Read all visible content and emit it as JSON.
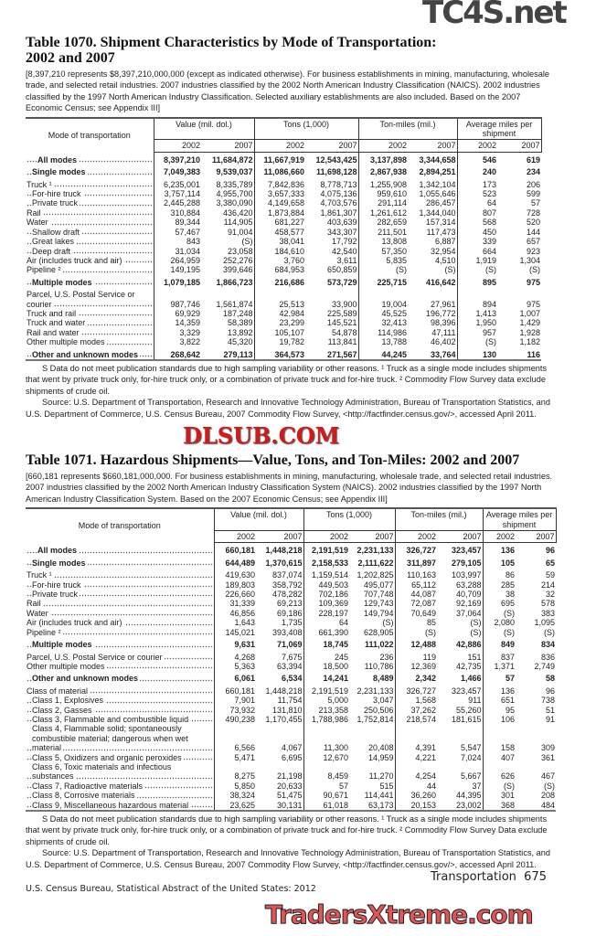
{
  "watermarks": {
    "top": "TC4S.net",
    "middle": "DLSUB.COM",
    "bottom": "TradersXtreme.com"
  },
  "t1": {
    "title": "Table 1070. Shipment Characteristics by Mode of Transportation: 2002 and 2007",
    "headnote": "[8,397,210 represents $8,397,210,000,000 (except as indicated otherwise). For business establishments in mining, manufacturing, wholesale trade, and selected retail industries. 2007 industries classified by the 2002 North American Industry Classification (NAICS). 2002 industries classified by the 1997 North American Industry Classification. Selected auxiliary establishments are also included. Based on the 2007 Economic Census; see Appendix III]",
    "stub": "Mode of transportation",
    "groups": [
      "Value (mil. dol.)",
      "Tons (1,000)",
      "Ton-miles (mil.)",
      "Average miles per shipment"
    ],
    "years": [
      "2002",
      "2007",
      "2002",
      "2007",
      "2002",
      "2007",
      "2002",
      "2007"
    ],
    "rows": [
      {
        "label": "All modes",
        "b": true,
        "ind": 2,
        "gap": true,
        "v": [
          "8,397,210",
          "11,684,872",
          "11,667,919",
          "12,543,425",
          "3,137,898",
          "3,344,658",
          "546",
          "619"
        ]
      },
      {
        "label": "Single modes",
        "b": true,
        "ind": 1,
        "gap": true,
        "v": [
          "7,049,383",
          "9,539,037",
          "11,086,660",
          "11,698,128",
          "2,867,938",
          "2,894,251",
          "240",
          "234"
        ]
      },
      {
        "label": "Truck ¹",
        "ind": 0,
        "gap": true,
        "v": [
          "6,235,001",
          "8,335,789",
          "7,842,836",
          "8,778,713",
          "1,255,908",
          "1,342,104",
          "173",
          "206"
        ]
      },
      {
        "label": "For-hire truck",
        "ind": 1,
        "v": [
          "3,757,114",
          "4,955,700",
          "3,657,333",
          "4,075,136",
          "959,610",
          "1,055,646",
          "523",
          "599"
        ]
      },
      {
        "label": "Private truck",
        "ind": 1,
        "v": [
          "2,445,288",
          "3,380,090",
          "4,149,658",
          "4,703,576",
          "291,114",
          "286,457",
          "64",
          "57"
        ]
      },
      {
        "label": "Rail",
        "ind": 0,
        "v": [
          "310,884",
          "436,420",
          "1,873,884",
          "1,861,307",
          "1,261,612",
          "1,344,040",
          "807",
          "728"
        ]
      },
      {
        "label": "Water",
        "ind": 0,
        "v": [
          "89,344",
          "114,905",
          "681,227",
          "403,639",
          "282,659",
          "157,314",
          "568",
          "520"
        ]
      },
      {
        "label": "Shallow draft",
        "ind": 1,
        "v": [
          "57,467",
          "91,004",
          "458,577",
          "343,307",
          "211,501",
          "117,473",
          "450",
          "144"
        ]
      },
      {
        "label": "Great lakes",
        "ind": 1,
        "v": [
          "843",
          "(S)",
          "38,041",
          "17,792",
          "13,808",
          "6,887",
          "339",
          "657"
        ]
      },
      {
        "label": "Deep draft",
        "ind": 1,
        "v": [
          "31,034",
          "23,058",
          "184,610",
          "42,540",
          "57,350",
          "32,954",
          "664",
          "923"
        ]
      },
      {
        "label": "Air (includes truck and air)",
        "ind": 0,
        "v": [
          "264,959",
          "252,276",
          "3,760",
          "3,611",
          "5,835",
          "4,510",
          "1,919",
          "1,304"
        ]
      },
      {
        "label": "Pipeline ²",
        "ind": 0,
        "v": [
          "149,195",
          "399,646",
          "684,953",
          "650,859",
          "(S)",
          "(S)",
          "(S)",
          "(S)"
        ]
      },
      {
        "label": "Multiple modes",
        "b": true,
        "ind": 1,
        "gap": true,
        "v": [
          "1,079,185",
          "1,866,723",
          "216,686",
          "573,729",
          "225,715",
          "416,642",
          "895",
          "975"
        ]
      },
      {
        "label": "Parcel, U.S. Postal Service or courier",
        "ind": 0,
        "gap": true,
        "v": [
          "987,746",
          "1,561,874",
          "25,513",
          "33,900",
          "19,004",
          "27,961",
          "894",
          "975"
        ]
      },
      {
        "label": "Truck and rail",
        "ind": 0,
        "v": [
          "69,929",
          "187,248",
          "42,984",
          "225,589",
          "45,525",
          "196,772",
          "1,413",
          "1,007"
        ]
      },
      {
        "label": "Truck and water",
        "ind": 0,
        "v": [
          "14,359",
          "58,389",
          "23,299",
          "145,521",
          "32,413",
          "98,396",
          "1,950",
          "1,429"
        ]
      },
      {
        "label": "Rail and water",
        "ind": 0,
        "v": [
          "3,329",
          "13,892",
          "105,107",
          "54,878",
          "114,986",
          "47,111",
          "957",
          "1,928"
        ]
      },
      {
        "label": "Other multiple modes",
        "ind": 0,
        "v": [
          "3,822",
          "45,320",
          "19,782",
          "113,841",
          "13,788",
          "46,402",
          "(S)",
          "1,182"
        ]
      },
      {
        "label": "Other and unknown modes",
        "b": true,
        "ind": 1,
        "gap": true,
        "v": [
          "268,642",
          "279,113",
          "364,573",
          "271,567",
          "44,245",
          "33,764",
          "130",
          "116"
        ]
      }
    ],
    "footnote": "S Data do not meet publication standards due to high sampling variability or other reasons. ¹ Truck as a single mode includes shipments that went by private truck only, for-hire truck only, or a combination of private truck and for-hire truck. ² Commodity Flow Survey data exclude shipments of crude oil.",
    "source": "Source: U.S. Department of Transportation, Research and Innovative Technology Administration, Bureau of Transportation Statistics, and U.S. Department of Commerce, U.S. Census Bureau, 2007 Commodity Flow Survey, <http://factfinder.census.gov/>, accessed April 2011."
  },
  "t2": {
    "title": "Table 1071. Hazardous Shipments—Value, Tons, and Ton-Miles: 2002 and 2007",
    "headnote": "[660,181 represents $660,181,000,000. For business establishments in mining, manufacturing, wholesale trade, and selected retail industries. 2007 industries classified by the 2002 North American Industry Classification System (NAICS). 2002 industries classified by the 1997 North American Industry Classification System. Based on the 2007 Economic Census; see Appendix III]",
    "stub": "Mode of transportation",
    "groups": [
      "Value (mil. dol.)",
      "Tons (1,000)",
      "Ton-miles (mil.)",
      "Average miles per shipment"
    ],
    "years": [
      "2002",
      "2007",
      "2002",
      "2007",
      "2002",
      "2007",
      "2002",
      "2007"
    ],
    "rows": [
      {
        "label": "All modes",
        "b": true,
        "ind": 2,
        "gap": true,
        "v": [
          "660,181",
          "1,448,218",
          "2,191,519",
          "2,231,133",
          "326,727",
          "323,457",
          "136",
          "96"
        ]
      },
      {
        "label": "Single modes",
        "b": true,
        "ind": 1,
        "gap": true,
        "v": [
          "644,489",
          "1,370,615",
          "2,158,533",
          "2,111,622",
          "311,897",
          "279,105",
          "105",
          "65"
        ]
      },
      {
        "label": "Truck ¹",
        "ind": 0,
        "gap": true,
        "v": [
          "419,630",
          "837,074",
          "1,159,514",
          "1,202,825",
          "110,163",
          "103,997",
          "86",
          "59"
        ]
      },
      {
        "label": "For-hire truck",
        "ind": 1,
        "v": [
          "189,803",
          "358,792",
          "449,503",
          "495,077",
          "65,112",
          "63,288",
          "285",
          "214"
        ]
      },
      {
        "label": "Private truck",
        "ind": 1,
        "v": [
          "226,660",
          "478,282",
          "702,186",
          "707,748",
          "44,087",
          "40,709",
          "38",
          "32"
        ]
      },
      {
        "label": "Rail",
        "ind": 0,
        "v": [
          "31,339",
          "69,213",
          "109,369",
          "129,743",
          "72,087",
          "92,169",
          "695",
          "578"
        ]
      },
      {
        "label": "Water",
        "ind": 0,
        "v": [
          "46,856",
          "69,186",
          "228,197",
          "149,794",
          "70,649",
          "37,064",
          "(S)",
          "383"
        ]
      },
      {
        "label": "Air (includes truck and air)",
        "ind": 0,
        "v": [
          "1,643",
          "1,735",
          "64",
          "(S)",
          "85",
          "(S)",
          "2,080",
          "1,095"
        ]
      },
      {
        "label": "Pipeline ²",
        "ind": 0,
        "v": [
          "145,021",
          "393,408",
          "661,390",
          "628,905",
          "(S)",
          "(S)",
          "(S)",
          "(S)"
        ]
      },
      {
        "label": "Multiple modes",
        "b": true,
        "ind": 1,
        "gap": true,
        "v": [
          "9,631",
          "71,069",
          "18,745",
          "111,022",
          "12,488",
          "42,886",
          "849",
          "834"
        ]
      },
      {
        "label": "Parcel, U.S. Postal Service or courier",
        "ind": 0,
        "gap": true,
        "v": [
          "4,268",
          "7,675",
          "245",
          "236",
          "119",
          "151",
          "837",
          "836"
        ]
      },
      {
        "label": "Other multiple modes",
        "ind": 0,
        "v": [
          "5,363",
          "63,394",
          "18,500",
          "110,786",
          "12,369",
          "42,735",
          "1,371",
          "2,749"
        ]
      },
      {
        "label": "Other and unknown modes",
        "b": true,
        "ind": 1,
        "gap": true,
        "v": [
          "6,061",
          "6,534",
          "14,241",
          "8,489",
          "2,342",
          "1,466",
          "57",
          "58"
        ]
      },
      {
        "label": "Class of material",
        "ind": 0,
        "gap": true,
        "v": [
          "660,181",
          "1,448,218",
          "2,191,519",
          "2,231,133",
          "326,727",
          "323,457",
          "136",
          "96"
        ]
      },
      {
        "label": "Class 1, Explosives",
        "ind": 1,
        "v": [
          "7,901",
          "11,754",
          "5,000",
          "3,047",
          "1,568",
          "911",
          "651",
          "738"
        ]
      },
      {
        "label": "Class 2, Gasses",
        "ind": 1,
        "v": [
          "73,932",
          "131,810",
          "213,358",
          "250,506",
          "37,262",
          "55,260",
          "95",
          "51"
        ]
      },
      {
        "label": "Class 3, Flammable and combustible liquid",
        "ind": 1,
        "v": [
          "490,238",
          "1,170,455",
          "1,788,986",
          "1,752,814",
          "218,574",
          "181,615",
          "106",
          "91"
        ]
      },
      {
        "label": "Class 4, Flammable solid; spontaneously combustible material; dangerous when wet material",
        "ind": 1,
        "v": [
          "6,566",
          "4,067",
          "11,300",
          "20,408",
          "4,391",
          "5,547",
          "158",
          "309"
        ]
      },
      {
        "label": "Class 5, Oxidizers and organic peroxides",
        "ind": 1,
        "v": [
          "5,471",
          "6,695",
          "12,670",
          "14,959",
          "4,221",
          "7,024",
          "407",
          "361"
        ]
      },
      {
        "label": "Class 6, Toxic materials and infectious substances",
        "ind": 1,
        "v": [
          "8,275",
          "21,198",
          "8,459",
          "11,270",
          "4,254",
          "5,667",
          "626",
          "467"
        ]
      },
      {
        "label": "Class 7, Radioactive materials",
        "ind": 1,
        "v": [
          "5,850",
          "20,633",
          "57",
          "515",
          "44",
          "37",
          "(S)",
          "(S)"
        ]
      },
      {
        "label": "Class 8, Corrosive materials",
        "ind": 1,
        "v": [
          "38,324",
          "51,475",
          "90,671",
          "114,441",
          "36,260",
          "44,395",
          "301",
          "208"
        ]
      },
      {
        "label": "Class 9, Miscellaneous hazardous material",
        "ind": 1,
        "v": [
          "23,625",
          "30,131",
          "61,018",
          "63,173",
          "20,153",
          "23,002",
          "368",
          "484"
        ]
      }
    ],
    "footnote": "S Data do not meet publication standards due to high sampling variability or other reasons. ¹ Truck as a single mode includes shipments that went by private truck only, for-hire truck only, or a combination of private truck and for-hire truck. ² Commodity Flow Survey Data exclude shipments of crude oil.",
    "source": "Source: U.S. Department of Transportation, Research and Innovative Technology Administration, Bureau of Transportation Statistics, and U.S. Department of Commerce, U.S. Census Bureau, 2007 Commodity Flow Survey, <http://factfinder.census.gov/>, accessed April 2011."
  },
  "footer": {
    "section": "Transportation",
    "page": "675",
    "publication": "U.S. Census Bureau, Statistical Abstract of the United States: 2012"
  }
}
